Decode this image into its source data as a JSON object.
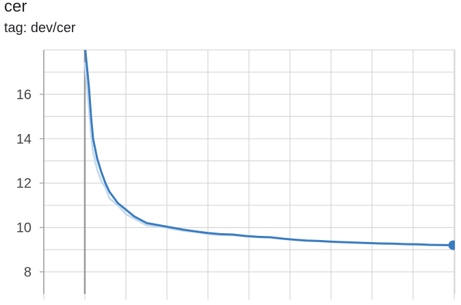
{
  "header": {
    "title": "cer",
    "subtitle": "tag: dev/cer"
  },
  "colors": {
    "series": "#3a7cbf",
    "series_raw": "#c6dbef",
    "grid": "#d6d6d6",
    "axis": "#9a9a9a"
  },
  "chart_data": {
    "type": "line",
    "title": "cer",
    "subtitle": "tag: dev/cer",
    "xlabel": "",
    "ylabel": "",
    "ylim": [
      7.0,
      18.0
    ],
    "xlim": [
      0,
      1
    ],
    "grid": true,
    "y_ticks": [
      8,
      10,
      12,
      14,
      16
    ],
    "y_tick_labels": [
      "8",
      "10",
      "12",
      "14",
      "16"
    ],
    "series": [
      {
        "smoothed": true,
        "x": [
          0.1,
          0.11,
          0.115,
          0.12,
          0.13,
          0.14,
          0.15,
          0.16,
          0.18,
          0.2,
          0.22,
          0.25,
          0.28,
          0.31,
          0.34,
          0.37,
          0.4,
          0.43,
          0.46,
          0.49,
          0.52,
          0.55,
          0.58,
          0.61,
          0.64,
          0.67,
          0.7,
          0.73,
          0.76,
          0.79,
          0.82,
          0.85,
          0.88,
          0.91,
          0.94,
          0.97,
          0.996
        ],
        "y": [
          18.2,
          16.3,
          15.0,
          14.0,
          13.1,
          12.5,
          12.0,
          11.6,
          11.1,
          10.8,
          10.5,
          10.2,
          10.1,
          10.0,
          9.9,
          9.82,
          9.75,
          9.7,
          9.68,
          9.62,
          9.58,
          9.56,
          9.5,
          9.45,
          9.41,
          9.39,
          9.36,
          9.34,
          9.32,
          9.3,
          9.28,
          9.27,
          9.25,
          9.24,
          9.22,
          9.21,
          9.2
        ]
      },
      {
        "smoothed": false,
        "x": [
          0.1,
          0.11,
          0.115,
          0.12,
          0.13,
          0.14,
          0.15,
          0.16,
          0.18,
          0.2,
          0.22,
          0.25,
          0.28,
          0.31,
          0.34,
          0.37,
          0.4,
          0.43,
          0.46,
          0.49,
          0.52,
          0.55,
          0.58,
          0.61,
          0.64,
          0.67,
          0.7,
          0.73,
          0.76,
          0.79,
          0.82,
          0.85,
          0.88,
          0.91,
          0.94,
          0.97,
          0.996
        ],
        "y": [
          17.4,
          15.4,
          14.2,
          13.4,
          12.6,
          12.1,
          11.8,
          11.3,
          11.0,
          10.6,
          10.4,
          10.1,
          10.05,
          9.95,
          9.85,
          9.8,
          9.7,
          9.66,
          9.66,
          9.6,
          9.56,
          9.55,
          9.49,
          9.44,
          9.4,
          9.38,
          9.35,
          9.33,
          9.31,
          9.29,
          9.27,
          9.26,
          9.24,
          9.23,
          9.21,
          9.2,
          9.2
        ]
      }
    ],
    "last_point": {
      "x": 0.996,
      "y": 9.2
    }
  }
}
